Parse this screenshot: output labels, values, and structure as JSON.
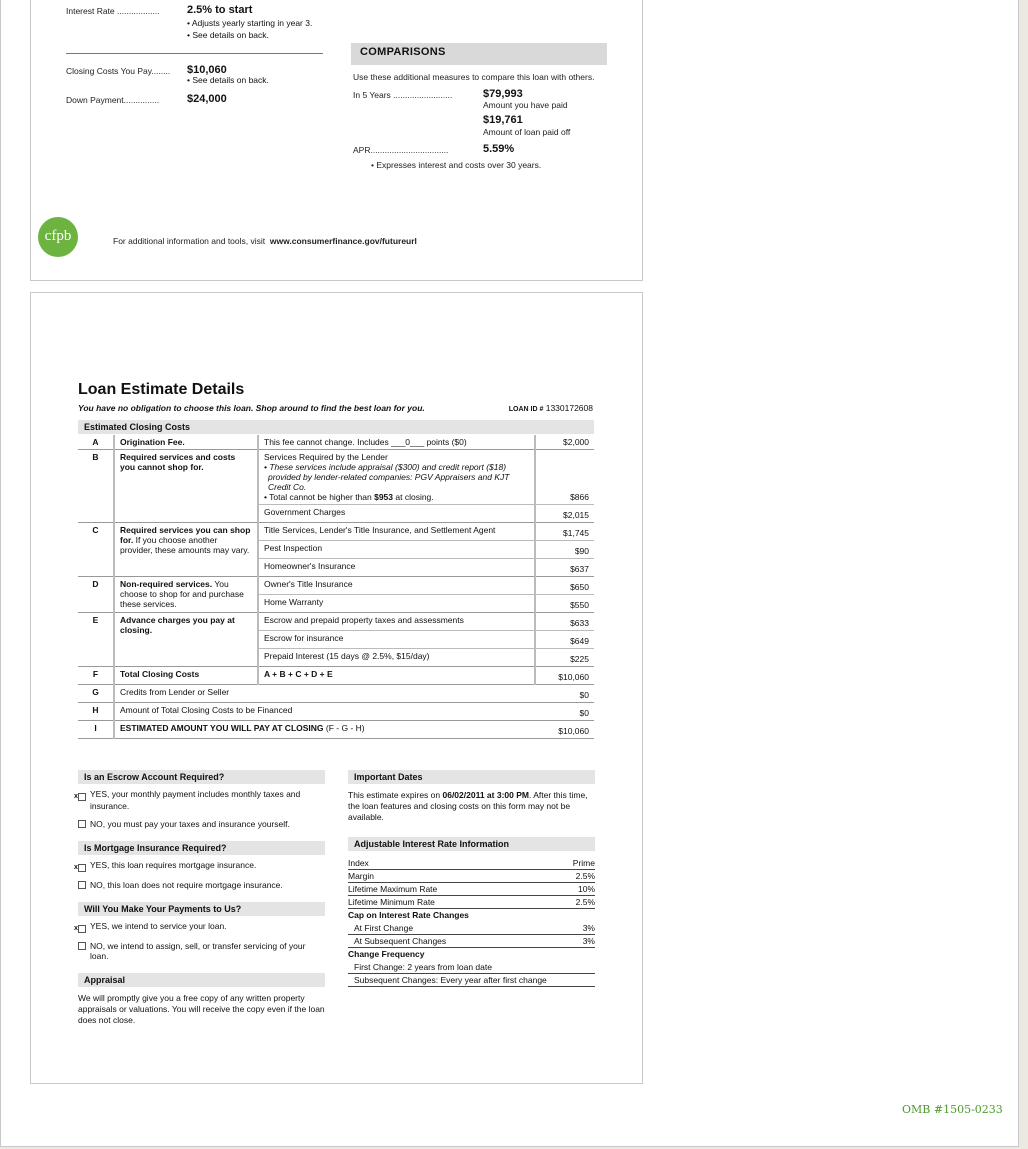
{
  "summary": {
    "interest_rate_label": "Interest Rate ..................",
    "interest_rate_value": "2.5% to start",
    "interest_notes": [
      "• Adjusts yearly starting in year 3.",
      "• See details on back."
    ],
    "closing_label": "Closing Costs You Pay........",
    "closing_value": "$10,060",
    "closing_note": "• See details on back.",
    "down_label": "Down Payment...............",
    "down_value": "$24,000"
  },
  "comparisons": {
    "title": "COMPARISONS",
    "intro": "Use these additional measures to compare this loan with others.",
    "five_years_label": "In 5 Years .........................",
    "paid_value": "$79,993",
    "paid_label": "Amount you have paid",
    "paidoff_value": "$19,761",
    "paidoff_label": "Amount of loan paid off",
    "apr_label": "APR.................................",
    "apr_value": "5.59%",
    "apr_note": "• Expresses interest and costs over 30 years."
  },
  "footer": {
    "logo": "cfpb",
    "text": "For additional information and tools, visit",
    "url": "www.consumerfinance.gov/futureurl",
    "brand_color": "#6cb33f"
  },
  "details": {
    "title": "Loan Estimate Details",
    "subtitle": "You have no obligation to choose this loan. Shop around to find the best loan for you.",
    "loan_id_label": "LOAN ID #",
    "loan_id": "1330172608",
    "section": "Estimated Closing Costs",
    "rows": {
      "A": {
        "letter": "A",
        "name": "Origination Fee",
        "desc": "This fee cannot change.  Includes ___0___ points  ($0)",
        "amount": "$2,000"
      },
      "B": {
        "letter": "B",
        "name": "Required services and costs you cannot shop for.",
        "desc_title": "Services Required by the Lender",
        "desc_note": "• These services include appraisal ($300) and credit report ($18) provided by lender-related companies: PGV Appraisers and KJT Credit Co.",
        "desc_total_pre": "• Total cannot be higher than ",
        "desc_total_bold": "$953",
        "desc_total_post": " at closing.",
        "amount": "$866",
        "sub_desc": "Government Charges",
        "sub_amount": "$2,015"
      },
      "C": {
        "letter": "C",
        "name_bold": "Required services you can shop for.",
        "name_rest": " If you choose another provider, these amounts may vary.",
        "items": [
          {
            "desc": "Title Services, Lender's Title Insurance, and Settlement Agent",
            "amount": "$1,745"
          },
          {
            "desc": "Pest Inspection",
            "amount": "$90"
          },
          {
            "desc": "Homeowner's Insurance",
            "amount": "$637"
          }
        ]
      },
      "D": {
        "letter": "D",
        "name_bold": "Non-required services.",
        "name_rest": " You choose to shop for and purchase these services.",
        "items": [
          {
            "desc": "Owner's Title Insurance",
            "amount": "$650"
          },
          {
            "desc": "Home Warranty",
            "amount": "$550"
          }
        ]
      },
      "E": {
        "letter": "E",
        "name": "Advance charges you pay at closing.",
        "items": [
          {
            "desc": "Escrow and prepaid property taxes and assessments",
            "amount": "$633"
          },
          {
            "desc": "Escrow for insurance",
            "amount": "$649"
          },
          {
            "desc": "Prepaid Interest (15 days @ 2.5%, $15/day)",
            "amount": "$225"
          }
        ]
      },
      "F": {
        "letter": "F",
        "name": "Total Closing Costs",
        "desc": "A + B + C + D + E",
        "amount": "$10,060"
      },
      "G": {
        "letter": "G",
        "desc": "Credits from Lender or Seller",
        "amount": "$0"
      },
      "H": {
        "letter": "H",
        "desc": "Amount of Total Closing Costs to be Financed",
        "amount": "$0"
      },
      "I": {
        "letter": "I",
        "desc": "ESTIMATED AMOUNT YOU WILL PAY AT CLOSING",
        "desc_suffix": "  (F - G - H)",
        "amount": "$10,060"
      }
    }
  },
  "escrow": {
    "title": "Is an Escrow Account Required?",
    "yes": "YES, your monthly payment includes monthly taxes and insurance.",
    "no": "NO, you must pay your taxes and insurance yourself.",
    "yes_checked": true
  },
  "mortgage_ins": {
    "title": "Is Mortgage Insurance Required?",
    "yes": "YES, this loan requires mortgage insurance.",
    "no": "NO, this loan does not require mortgage insurance.",
    "yes_checked": true
  },
  "payments": {
    "title": "Will You Make Your Payments to Us?",
    "yes": "YES, we intend to service your loan.",
    "no": "NO, we intend to assign, sell, or transfer servicing of your loan.",
    "yes_checked": true
  },
  "appraisal": {
    "title": "Appraisal",
    "text": "We will promptly give you a free copy of any written property appraisals or valuations. You will receive the copy even if the loan does not close."
  },
  "dates": {
    "title": "Important Dates",
    "pre": "This estimate expires on ",
    "bold": "06/02/2011 at 3:00 PM",
    "post": ". After this time, the loan features and closing costs on this form may not be available."
  },
  "arm": {
    "title": "Adjustable Interest Rate Information",
    "rows": [
      {
        "label": "Index",
        "value": "Prime"
      },
      {
        "label": "Margin",
        "value": "2.5%"
      },
      {
        "label": "Lifetime Maximum Rate",
        "value": "10%"
      },
      {
        "label": "Lifetime Minimum Rate",
        "value": "2.5%"
      }
    ],
    "cap_title": "Cap on Interest Rate Changes",
    "cap_rows": [
      {
        "label": "At First Change",
        "value": "3%"
      },
      {
        "label": "At Subsequent Changes",
        "value": "3%"
      }
    ],
    "freq_title": "Change Frequency",
    "freq_rows": [
      "First Change: 2 years from loan date",
      "Subsequent Changes: Every year after first change"
    ]
  },
  "omb": "OMB #1505-0233"
}
